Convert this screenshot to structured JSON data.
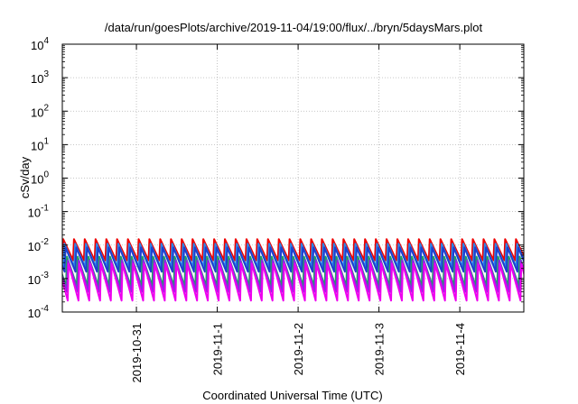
{
  "chart_data": {
    "type": "line",
    "title": "/data/run/goesPlots/archive/2019-11-04/19:00/flux/../bryn/5daysMars.plot",
    "xlabel": "Coordinated Universal Time (UTC)",
    "ylabel": "cSv/day",
    "yscale": "log",
    "ylim": [
      0.0001,
      10000
    ],
    "y_ticks": [
      {
        "value": 0.0001,
        "base": "10",
        "exp": "-4"
      },
      {
        "value": 0.001,
        "base": "10",
        "exp": "-3"
      },
      {
        "value": 0.01,
        "base": "10",
        "exp": "-2"
      },
      {
        "value": 0.1,
        "base": "10",
        "exp": "-1"
      },
      {
        "value": 1,
        "base": "10",
        "exp": "0"
      },
      {
        "value": 10,
        "base": "10",
        "exp": "1"
      },
      {
        "value": 100,
        "base": "10",
        "exp": "2"
      },
      {
        "value": 1000,
        "base": "10",
        "exp": "3"
      },
      {
        "value": 10000,
        "base": "10",
        "exp": "4"
      }
    ],
    "xlim": [
      "2019-10-30 02:00",
      "2019-11-04 19:00"
    ],
    "x_ticks": [
      {
        "value": "2019-10-31 00:00",
        "label": "2019-10-31"
      },
      {
        "value": "2019-11-01 00:00",
        "label": "2019-11-1"
      },
      {
        "value": "2019-11-02 00:00",
        "label": "2019-11-2"
      },
      {
        "value": "2019-11-03 00:00",
        "label": "2019-11-3"
      },
      {
        "value": "2019-11-04 00:00",
        "label": "2019-11-4"
      }
    ],
    "grid": true,
    "legend": false,
    "sawtooth_period_hours": 3.2,
    "series": [
      {
        "color": "#ee0000",
        "peak": 0.015,
        "trough": 0.0035,
        "phase_hours": 0.0
      },
      {
        "color": "#2e86e6",
        "peak": 0.011,
        "trough": 0.0022,
        "phase_hours": 0.35
      },
      {
        "color": "#1c3fd0",
        "peak": 0.0085,
        "trough": 0.0016,
        "phase_hours": 0.7
      },
      {
        "color": "#20a060",
        "peak": 0.0045,
        "trough": 0.0006,
        "phase_hours": 1.1
      },
      {
        "color": "#8a2be2",
        "peak": 0.0035,
        "trough": 0.0004,
        "phase_hours": 1.4
      },
      {
        "color": "#ee00ee",
        "peak": 0.0028,
        "trough": 0.00022,
        "phase_hours": 1.6
      }
    ]
  }
}
